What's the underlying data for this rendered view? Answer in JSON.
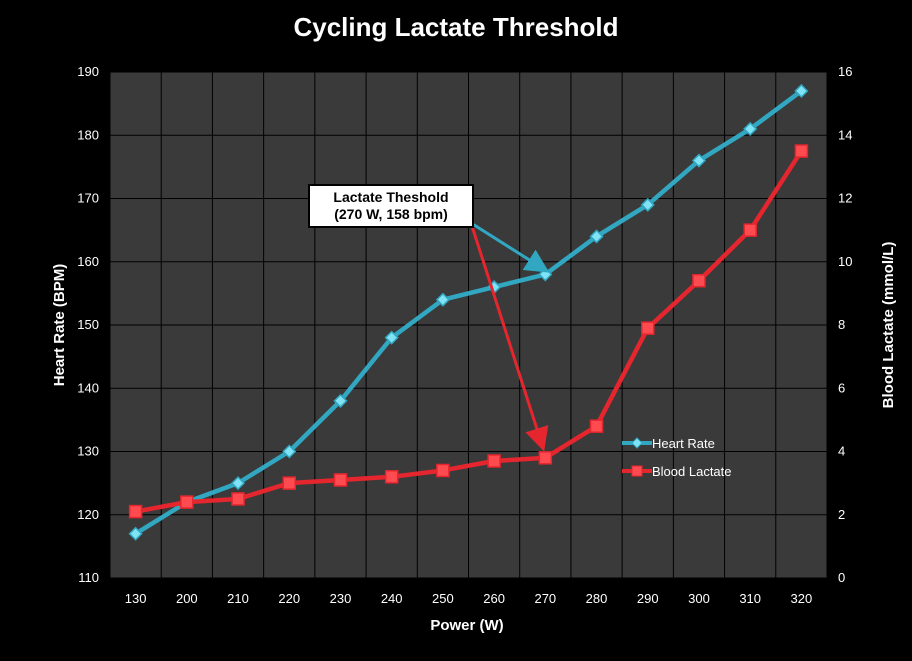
{
  "chart_data": {
    "type": "line",
    "title": "Cycling Lactate Threshold",
    "xlabel": "Power (W)",
    "ylabel_left": "Heart Rate (BPM)",
    "ylabel_right": "Blood Lactate (mmol/L)",
    "categories": [
      "130",
      "200",
      "210",
      "220",
      "230",
      "240",
      "250",
      "260",
      "270",
      "280",
      "290",
      "300",
      "310",
      "320"
    ],
    "ylim_left": [
      110,
      190
    ],
    "yticks_left": [
      110,
      120,
      130,
      140,
      150,
      160,
      170,
      180,
      190
    ],
    "ylim_right": [
      0,
      16
    ],
    "yticks_right": [
      0,
      2,
      4,
      6,
      8,
      10,
      12,
      14,
      16
    ],
    "grid": true,
    "legend_position": "right-center",
    "series": [
      {
        "name": "Heart Rate",
        "axis": "left",
        "color": "#31A7C2",
        "marker": "diamond",
        "values": [
          117,
          122,
          125,
          130,
          138,
          148,
          154,
          156,
          158,
          164,
          169,
          176,
          181,
          187
        ]
      },
      {
        "name": "Blood Lactate",
        "axis": "right",
        "color": "#E5262E",
        "marker": "square",
        "values": [
          2.1,
          2.4,
          2.5,
          3.0,
          3.1,
          3.2,
          3.4,
          3.7,
          3.8,
          4.8,
          7.9,
          9.4,
          11.0,
          13.5
        ]
      }
    ],
    "annotation": {
      "line1": "Lactate Theshold",
      "line2": "(270 W, 158 bpm)",
      "target_category": "270"
    }
  }
}
